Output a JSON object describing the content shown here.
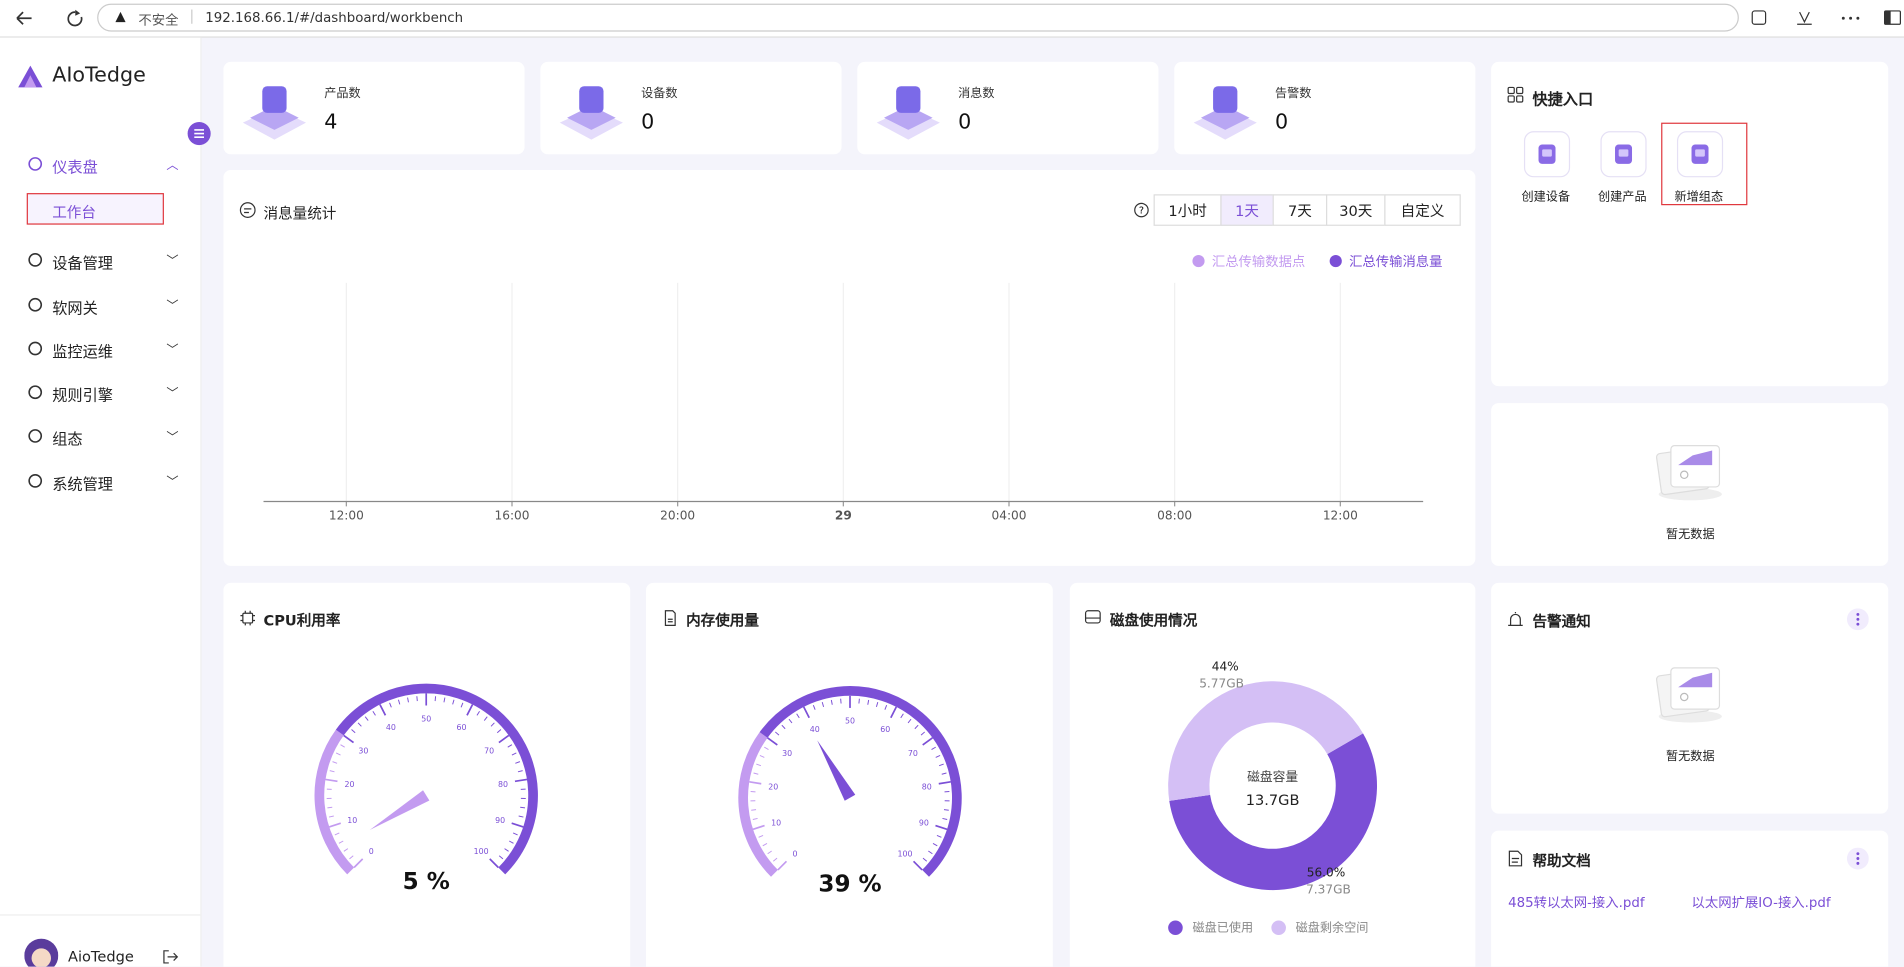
{
  "browser": {
    "security": "不安全",
    "url": "192.168.66.1/#/dashboard/workbench"
  },
  "sidebar": {
    "brand": "AIoTedge",
    "menu": [
      {
        "label": "仪表盘",
        "children": [
          "工作台"
        ]
      },
      {
        "label": "设备管理"
      },
      {
        "label": "软网关"
      },
      {
        "label": "监控运维"
      },
      {
        "label": "规则引擎"
      },
      {
        "label": "组态"
      },
      {
        "label": "系统管理"
      }
    ],
    "user": "AioTedge"
  },
  "stats": [
    {
      "label": "产品数",
      "value": 4
    },
    {
      "label": "设备数",
      "value": 0
    },
    {
      "label": "消息数",
      "value": 0
    },
    {
      "label": "告警数",
      "value": 0
    }
  ],
  "quick": {
    "title": "快捷入口",
    "items": [
      "创建设备",
      "创建产品",
      "新增组态"
    ]
  },
  "empty_text": "暂无数据",
  "message_chart": {
    "type": "line",
    "title": "消息量统计",
    "ranges": [
      "1小时",
      "1天",
      "7天",
      "30天",
      "自定义"
    ],
    "active_range": 1,
    "series": [
      {
        "name": "汇总传输数据点",
        "color": "#c39bf0"
      },
      {
        "name": "汇总传输消息量",
        "color": "#7b4fd6"
      }
    ],
    "categories": [
      "12:00",
      "16:00",
      "20:00",
      "29",
      "04:00",
      "08:00",
      "12:00"
    ]
  },
  "cpu": {
    "title": "CPU利用率",
    "type": "gauge",
    "value": 5,
    "value_label": "5 %",
    "ticks": [
      0,
      10,
      20,
      30,
      40,
      50,
      60,
      70,
      80,
      90,
      100
    ]
  },
  "memory": {
    "title": "内存使用量",
    "type": "gauge",
    "value": 39,
    "value_label": "39 %",
    "ticks": [
      0,
      10,
      20,
      30,
      40,
      50,
      60,
      70,
      80,
      90,
      100
    ]
  },
  "disk": {
    "title": "磁盘使用情况",
    "type": "pie",
    "center_label": "磁盘容量",
    "total": "13.7GB",
    "segments": [
      {
        "name": "磁盘已使用",
        "value": 56.0,
        "value_label": "56.0%",
        "size": "7.37GB",
        "color": "#7b4fd6"
      },
      {
        "name": "磁盘剩余空间",
        "value": 44,
        "value_label": "44%",
        "size": "5.77GB",
        "color": "#d4bff5"
      }
    ]
  },
  "alerts": {
    "title": "告警通知"
  },
  "docs": {
    "title": "帮助文档",
    "items": [
      "485转以太网-接入.pdf",
      "以太网扩展IO-接入.pdf"
    ]
  }
}
